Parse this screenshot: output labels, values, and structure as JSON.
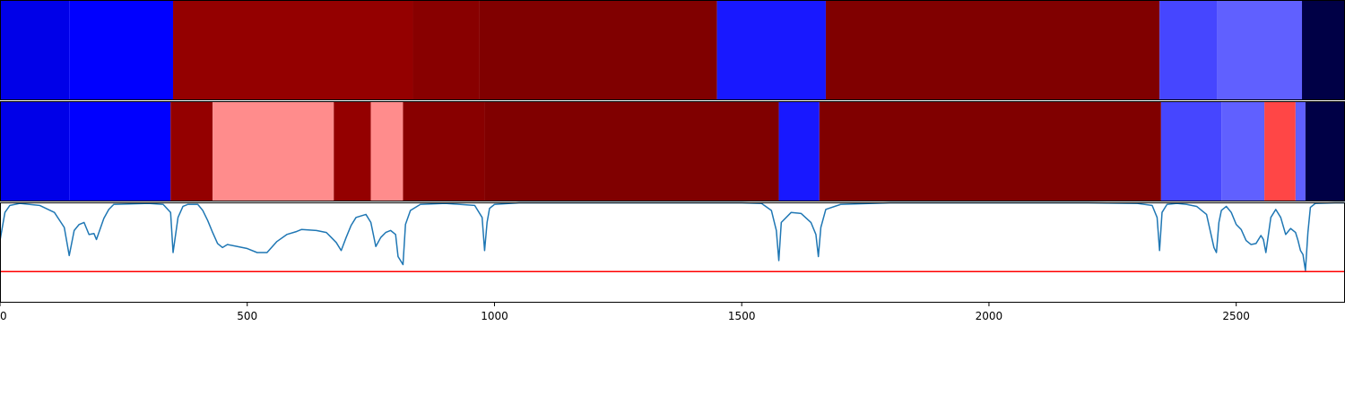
{
  "chart_data": [
    {
      "type": "heatmap",
      "segments": [
        {
          "start": 0,
          "end": 140,
          "color": "#0000e8"
        },
        {
          "start": 140,
          "end": 350,
          "color": "#0000ff"
        },
        {
          "start": 350,
          "end": 835,
          "color": "#940000"
        },
        {
          "start": 835,
          "end": 970,
          "color": "#880000"
        },
        {
          "start": 970,
          "end": 1450,
          "color": "#800000"
        },
        {
          "start": 1450,
          "end": 1670,
          "color": "#1818ff"
        },
        {
          "start": 1670,
          "end": 2345,
          "color": "#800000"
        },
        {
          "start": 2345,
          "end": 2462,
          "color": "#4646ff"
        },
        {
          "start": 2462,
          "end": 2633,
          "color": "#6060ff"
        },
        {
          "start": 2633,
          "end": 2720,
          "color": "#000046"
        }
      ]
    },
    {
      "type": "heatmap",
      "segments": [
        {
          "start": 0,
          "end": 140,
          "color": "#0000e8"
        },
        {
          "start": 140,
          "end": 345,
          "color": "#0000ff"
        },
        {
          "start": 345,
          "end": 430,
          "color": "#940000"
        },
        {
          "start": 430,
          "end": 675,
          "color": "#ff8c8c"
        },
        {
          "start": 675,
          "end": 750,
          "color": "#940000"
        },
        {
          "start": 750,
          "end": 815,
          "color": "#ff8c8c"
        },
        {
          "start": 815,
          "end": 980,
          "color": "#880000"
        },
        {
          "start": 980,
          "end": 1575,
          "color": "#800000"
        },
        {
          "start": 1575,
          "end": 1657,
          "color": "#1818ff"
        },
        {
          "start": 1657,
          "end": 2348,
          "color": "#800000"
        },
        {
          "start": 2348,
          "end": 2470,
          "color": "#4646ff"
        },
        {
          "start": 2470,
          "end": 2557,
          "color": "#6060ff"
        },
        {
          "start": 2557,
          "end": 2620,
          "color": "#ff4646"
        },
        {
          "start": 2620,
          "end": 2640,
          "color": "#6060ff"
        },
        {
          "start": 2640,
          "end": 2720,
          "color": "#000046"
        }
      ]
    },
    {
      "type": "line",
      "xlim": [
        0,
        2720
      ],
      "ylim": [
        0,
        1
      ],
      "xticks": [
        0,
        500,
        1000,
        1500,
        2000,
        2500
      ],
      "xtick_labels": [
        "0",
        "500",
        "1000",
        "1500",
        "2000",
        "2500"
      ],
      "threshold": 0.31,
      "threshold_color": "#ff0000",
      "line_color": "#1f77b4",
      "x": [
        0,
        10,
        20,
        40,
        80,
        110,
        130,
        140,
        150,
        160,
        170,
        175,
        180,
        190,
        195,
        200,
        210,
        220,
        230,
        300,
        330,
        345,
        350,
        360,
        370,
        380,
        400,
        410,
        420,
        430,
        440,
        450,
        460,
        480,
        500,
        520,
        540,
        560,
        580,
        600,
        610,
        640,
        660,
        670,
        680,
        690,
        700,
        710,
        720,
        740,
        750,
        760,
        770,
        780,
        790,
        800,
        805,
        815,
        820,
        830,
        850,
        900,
        960,
        975,
        980,
        985,
        990,
        1000,
        1050,
        1500,
        1540,
        1560,
        1570,
        1575,
        1580,
        1600,
        1620,
        1640,
        1650,
        1655,
        1660,
        1670,
        1700,
        1800,
        1900,
        2000,
        2100,
        2200,
        2300,
        2330,
        2340,
        2345,
        2350,
        2360,
        2380,
        2400,
        2420,
        2440,
        2455,
        2460,
        2465,
        2470,
        2480,
        2490,
        2500,
        2510,
        2520,
        2530,
        2540,
        2550,
        2555,
        2560,
        2570,
        2580,
        2590,
        2600,
        2610,
        2620,
        2625,
        2630,
        2635,
        2640,
        2645,
        2650,
        2660,
        2700,
        2720
      ],
      "y": [
        0.62,
        0.9,
        0.97,
        0.99,
        0.97,
        0.9,
        0.75,
        0.47,
        0.72,
        0.78,
        0.8,
        0.74,
        0.68,
        0.69,
        0.63,
        0.7,
        0.84,
        0.93,
        0.98,
        0.99,
        0.98,
        0.9,
        0.5,
        0.85,
        0.96,
        0.98,
        0.98,
        0.92,
        0.82,
        0.7,
        0.59,
        0.55,
        0.58,
        0.56,
        0.54,
        0.5,
        0.5,
        0.61,
        0.68,
        0.71,
        0.73,
        0.72,
        0.7,
        0.65,
        0.6,
        0.52,
        0.65,
        0.77,
        0.85,
        0.88,
        0.8,
        0.56,
        0.65,
        0.7,
        0.72,
        0.68,
        0.46,
        0.38,
        0.78,
        0.92,
        0.98,
        0.99,
        0.97,
        0.85,
        0.52,
        0.8,
        0.94,
        0.98,
        0.995,
        0.995,
        0.99,
        0.92,
        0.72,
        0.42,
        0.8,
        0.9,
        0.89,
        0.8,
        0.68,
        0.46,
        0.75,
        0.93,
        0.98,
        0.995,
        0.995,
        0.995,
        0.995,
        0.995,
        0.99,
        0.97,
        0.85,
        0.52,
        0.9,
        0.98,
        0.99,
        0.98,
        0.96,
        0.88,
        0.55,
        0.5,
        0.8,
        0.92,
        0.96,
        0.9,
        0.78,
        0.73,
        0.62,
        0.58,
        0.59,
        0.67,
        0.63,
        0.5,
        0.85,
        0.93,
        0.85,
        0.68,
        0.74,
        0.7,
        0.62,
        0.52,
        0.48,
        0.32,
        0.7,
        0.95,
        0.99,
        0.995,
        0.995
      ]
    }
  ]
}
